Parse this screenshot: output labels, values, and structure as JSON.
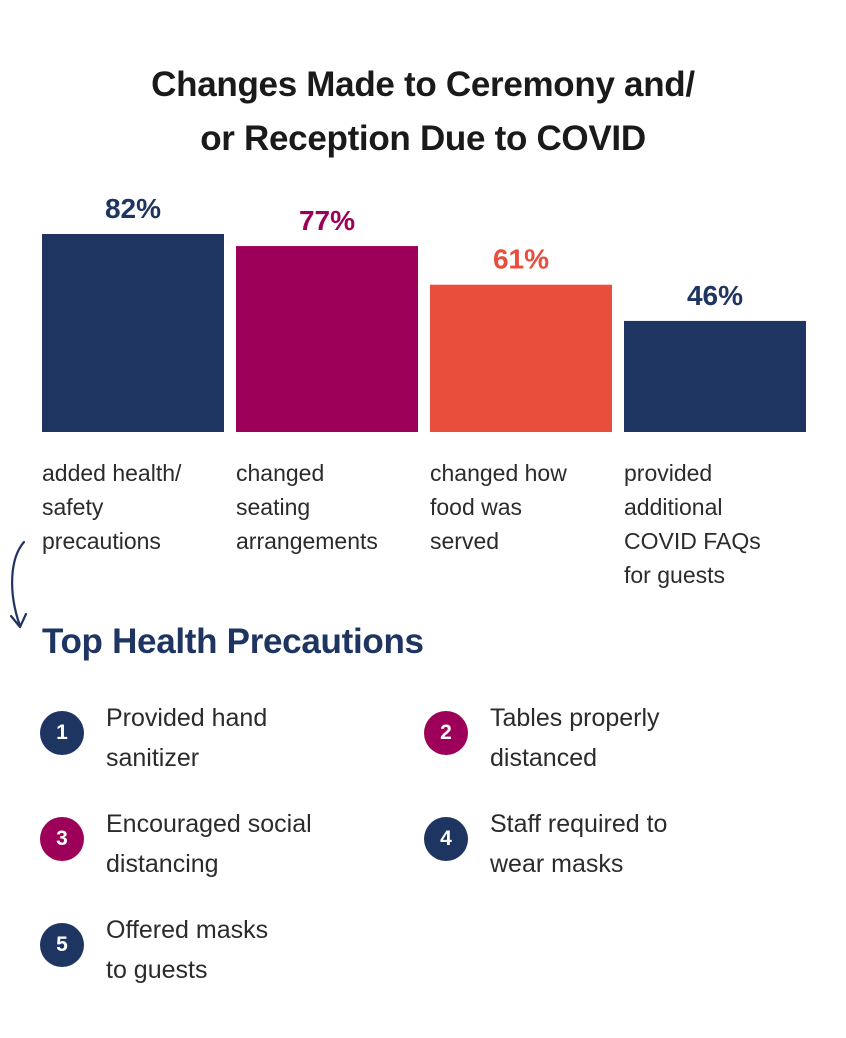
{
  "title_lines": [
    "Changes Made to Ceremony and/",
    "or Reception Due to COVID"
  ],
  "chart_data": {
    "type": "bar",
    "title": "Changes Made to Ceremony and/ or Reception Due to COVID",
    "categories": [
      "added health/ safety precautions",
      "changed seating arrangements",
      "changed how food was served",
      "provided additional COVID FAQs for guests"
    ],
    "category_lines": [
      [
        "added health/",
        "safety",
        "precautions"
      ],
      [
        "changed",
        "seating",
        "arrangements"
      ],
      [
        "changed how",
        "food was",
        "served"
      ],
      [
        "provided",
        "additional",
        "COVID FAQs",
        "for guests"
      ]
    ],
    "values": [
      82,
      77,
      61,
      46
    ],
    "value_labels": [
      "82%",
      "77%",
      "61%",
      "46%"
    ],
    "bar_colors": [
      "#1e3461",
      "#9c0058",
      "#e84e3b",
      "#1e3461"
    ],
    "value_label_colors": [
      "#1e3461",
      "#9c0058",
      "#e84e3b",
      "#1e3461"
    ],
    "ylim": [
      0,
      100
    ],
    "grid": false,
    "legend": "none",
    "axes_visible": false
  },
  "precautions": {
    "title": "Top Health Precautions",
    "items": [
      {
        "number": "1",
        "lines": [
          "Provided hand",
          "sanitizer"
        ],
        "color": "#1e3461"
      },
      {
        "number": "2",
        "lines": [
          "Tables properly",
          "distanced"
        ],
        "color": "#9c0058"
      },
      {
        "number": "3",
        "lines": [
          "Encouraged social",
          "distancing"
        ],
        "color": "#9c0058"
      },
      {
        "number": "4",
        "lines": [
          "Staff required to",
          "wear masks"
        ],
        "color": "#1e3461"
      },
      {
        "number": "5",
        "lines": [
          "Offered masks",
          "to guests"
        ],
        "color": "#1e3461"
      }
    ]
  },
  "icons": {
    "connector": "curved-arrow-down-icon"
  },
  "colors": {
    "navy": "#1e3461",
    "magenta": "#9c0058",
    "orange": "#e84e3b",
    "text": "#2b2b2b"
  }
}
